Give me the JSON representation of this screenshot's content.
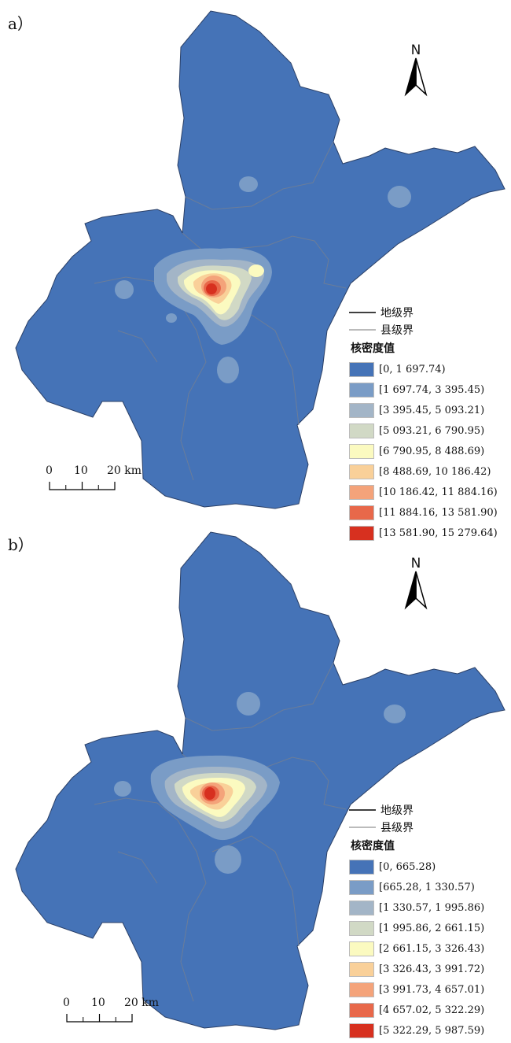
{
  "map_a": {
    "panel_label": "a）",
    "north_label": "N",
    "legend": {
      "city_boundary": "地级界",
      "county_boundary": "县级界",
      "title": "核密度值",
      "classes": [
        {
          "label": "[0, 1 697.74)",
          "color": "#4573b7"
        },
        {
          "label": "[1 697.74, 3 395.45)",
          "color": "#7a9cc6"
        },
        {
          "label": "[3 395.45, 5 093.21)",
          "color": "#a3b5c7"
        },
        {
          "label": "[5 093.21, 6 790.95)",
          "color": "#d1d9c5"
        },
        {
          "label": "[6 790.95, 8 488.69)",
          "color": "#fbfac0"
        },
        {
          "label": "[8 488.69, 10 186.42)",
          "color": "#f9d099"
        },
        {
          "label": "[10 186.42, 11 884.16)",
          "color": "#f4a37a"
        },
        {
          "label": "[11 884.16, 13 581.90)",
          "color": "#e8684a"
        },
        {
          "label": "[13 581.90, 15 279.64)",
          "color": "#d7301f"
        }
      ]
    },
    "scale": {
      "labels": [
        "0",
        "10",
        "20 km"
      ]
    }
  },
  "map_b": {
    "panel_label": "b）",
    "north_label": "N",
    "legend": {
      "city_boundary": "地级界",
      "county_boundary": "县级界",
      "title": "核密度值",
      "classes": [
        {
          "label": "[0, 665.28)",
          "color": "#4573b7"
        },
        {
          "label": "[665.28, 1 330.57)",
          "color": "#7a9cc6"
        },
        {
          "label": "[1 330.57, 1 995.86)",
          "color": "#a3b5c7"
        },
        {
          "label": "[1 995.86, 2 661.15)",
          "color": "#d1d9c5"
        },
        {
          "label": "[2 661.15, 3 326.43)",
          "color": "#fbfac0"
        },
        {
          "label": "[3 326.43, 3 991.72)",
          "color": "#f9d099"
        },
        {
          "label": "[3 991.73, 4 657.01)",
          "color": "#f4a37a"
        },
        {
          "label": "[4 657.02, 5 322.29)",
          "color": "#e8684a"
        },
        {
          "label": "[5 322.29, 5 987.59)",
          "color": "#d7301f"
        }
      ]
    },
    "scale": {
      "labels": [
        "0",
        "10",
        "20 km"
      ]
    }
  }
}
